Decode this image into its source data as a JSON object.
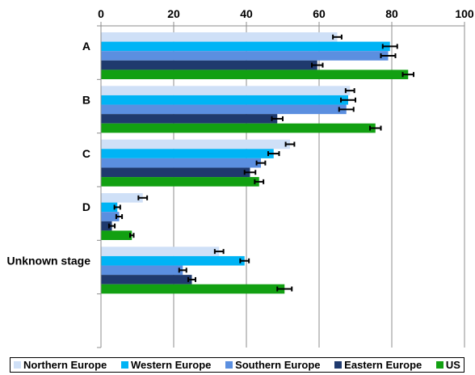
{
  "chart_data": {
    "type": "bar",
    "orientation": "horizontal",
    "title": "",
    "xlabel": "",
    "ylabel": "",
    "xlim": [
      0,
      100
    ],
    "x_ticks": [
      "0",
      "20",
      "40",
      "60",
      "80",
      "100"
    ],
    "x_axis_position": "top",
    "grid": "vertical gridlines",
    "legend_position": "bottom",
    "error_bars": true,
    "categories": [
      "A",
      "B",
      "C",
      "D",
      "Unknown stage",
      ""
    ],
    "series": [
      {
        "name": "Northern Europe",
        "color": "#cfe0f7",
        "values": [
          65,
          68.5,
          52,
          11.5,
          32.5,
          null
        ],
        "errors": [
          1.2,
          1.2,
          1.2,
          1.2,
          1.2,
          null
        ]
      },
      {
        "name": "Western Europe",
        "color": "#00b4f5",
        "values": [
          79.5,
          68,
          47.5,
          4.5,
          39.5,
          null
        ],
        "errors": [
          2,
          2,
          1.5,
          0.8,
          1.2,
          null
        ]
      },
      {
        "name": "Southern Europe",
        "color": "#5b8fe0",
        "values": [
          79,
          67.5,
          44,
          5,
          22.5,
          null
        ],
        "errors": [
          2,
          2,
          1.2,
          0.8,
          1,
          null
        ]
      },
      {
        "name": "Eastern Europe",
        "color": "#1f3a6e",
        "values": [
          59.5,
          48.5,
          41,
          3,
          25,
          null
        ],
        "errors": [
          1.5,
          1.5,
          1.5,
          0.8,
          1,
          null
        ]
      },
      {
        "name": "US",
        "color": "#12a012",
        "values": [
          84.5,
          75.5,
          43.5,
          8.5,
          50.5,
          null
        ],
        "errors": [
          1.5,
          1.5,
          1.2,
          0.5,
          2,
          null
        ]
      }
    ]
  }
}
